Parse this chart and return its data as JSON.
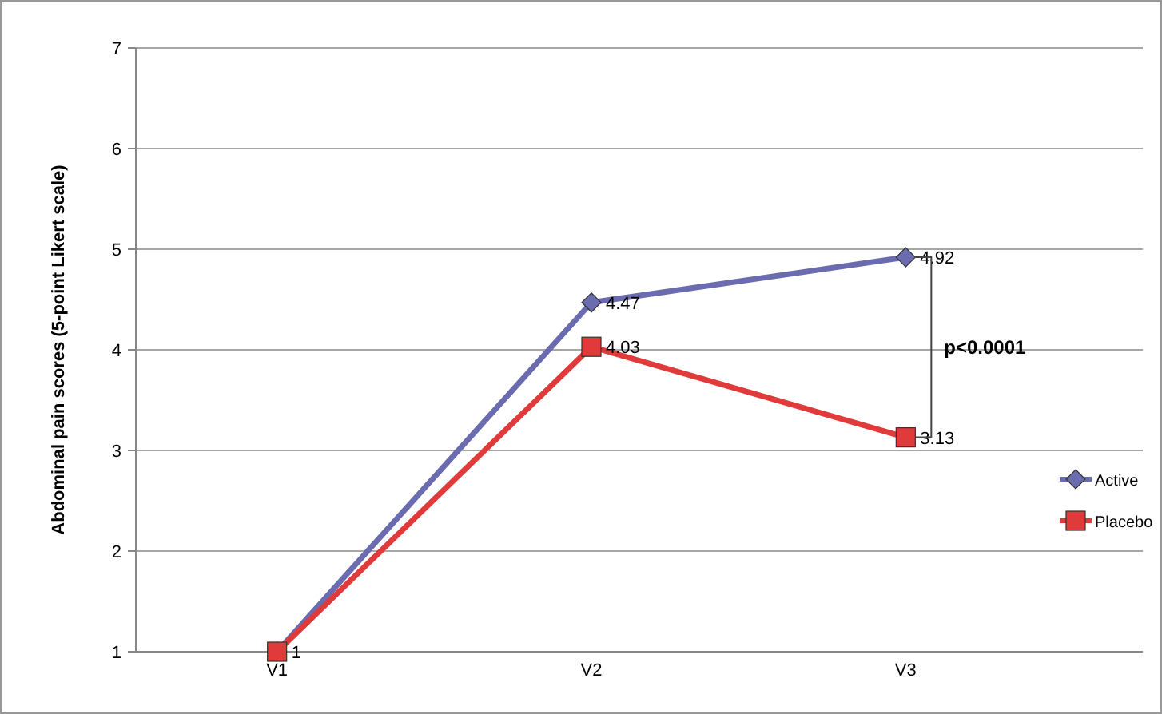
{
  "chart_data": {
    "type": "line",
    "ylabel": "Abdominal pain scores (5-point Likert scale)",
    "categories": [
      "V1",
      "V2",
      "V3"
    ],
    "series": [
      {
        "name": "Active",
        "color": "#6b6bb0",
        "marker": "diamond",
        "values": [
          1,
          4.47,
          4.92
        ],
        "value_labels": [
          null,
          "4.47",
          "4.92"
        ]
      },
      {
        "name": "Placebo",
        "color": "#e03a3a",
        "marker": "square",
        "values": [
          1,
          4.03,
          3.13
        ],
        "value_labels": [
          "1",
          "4.03",
          "3.13"
        ]
      }
    ],
    "ylim": [
      1,
      7
    ],
    "yticks": [
      1,
      2,
      3,
      4,
      5,
      6,
      7
    ],
    "grid": "y",
    "legend": "right",
    "line_style": "solid",
    "annotations": [
      "p<0.0001"
    ]
  }
}
